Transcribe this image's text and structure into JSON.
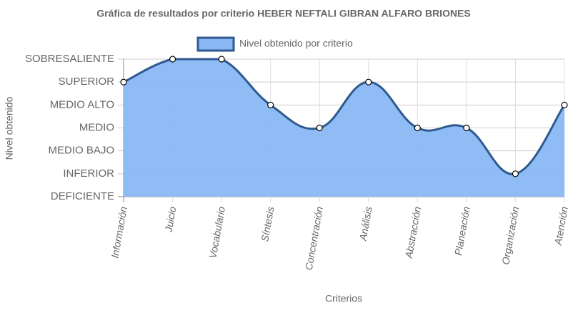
{
  "chart_data": {
    "type": "line",
    "title": "Gráfica de resultados por criterio HEBER NEFTALI GIBRAN ALFARO BRIONES",
    "x_label": "Criterios",
    "y_label": "Nivel obtenido",
    "categories": [
      "Información",
      "Juicio",
      "Vocabulario",
      "Síntesis",
      "Concentración",
      "Análisis",
      "Abstracción",
      "Planeación",
      "Organización",
      "Atención"
    ],
    "series": [
      {
        "name": "Nivel obtenido por criterio",
        "color": "#8ab8f5",
        "line_color": "#2e5a8f",
        "values": [
          5,
          6,
          6,
          4,
          3,
          5,
          3,
          3,
          1,
          4
        ]
      }
    ],
    "ylim": [
      0,
      6
    ],
    "yticks": [
      {
        "value": 0,
        "label": "DEFICIENTE"
      },
      {
        "value": 1,
        "label": "INFERIOR"
      },
      {
        "value": 2,
        "label": "MEDIO BAJO"
      },
      {
        "value": 3,
        "label": "MEDIO"
      },
      {
        "value": 4,
        "label": "MEDIO ALTO"
      },
      {
        "value": 5,
        "label": "SUPERIOR"
      },
      {
        "value": 6,
        "label": "SOBRESALIENTE"
      }
    ],
    "grid": true,
    "legend": "top"
  }
}
